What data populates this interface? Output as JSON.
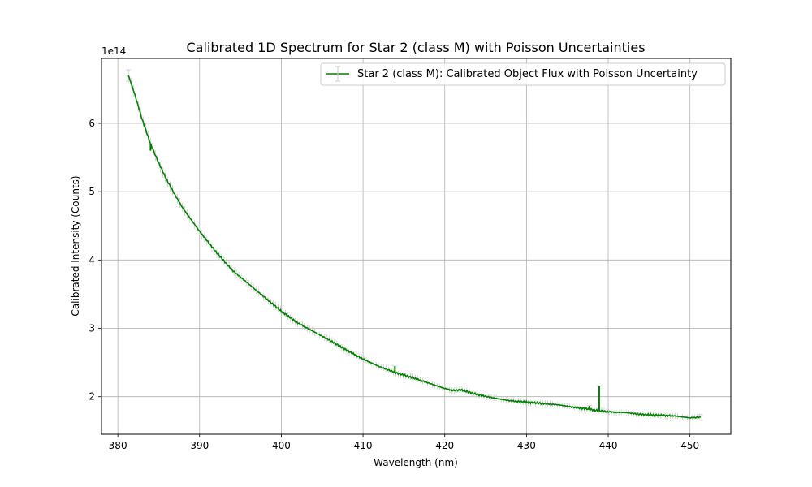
{
  "chart_data": {
    "type": "line",
    "title": "Calibrated 1D Spectrum for Star 2 (class M) with Poisson Uncertainties",
    "xlabel": "Wavelength (nm)",
    "ylabel": "Calibrated Intensity (Counts)",
    "y_offset_label": "1e14",
    "xlim": [
      378,
      455
    ],
    "ylim": [
      1.45,
      6.95
    ],
    "x_ticks": [
      380,
      390,
      400,
      410,
      420,
      430,
      440,
      450
    ],
    "y_ticks": [
      2,
      3,
      4,
      5,
      6
    ],
    "grid": true,
    "legend_position": "top-right",
    "series": [
      {
        "name": "Star 2 (class M): Calibrated Object Flux with Poisson Uncertainty",
        "color": "#008000",
        "errorbar_color": "#c8c8c8",
        "x": [
          381.3,
          382.0,
          383.0,
          384.0,
          385.0,
          386.0,
          387.0,
          388.0,
          390.0,
          392.0,
          394.0,
          396.0,
          398.0,
          400.0,
          402.0,
          404.0,
          406.0,
          408.0,
          410.0,
          412.0,
          414.0,
          416.0,
          418.0,
          420.0,
          421.0,
          422.0,
          424.0,
          426.0,
          428.0,
          430.0,
          432.0,
          434.0,
          436.0,
          437.5,
          438.5,
          440.0,
          441.0,
          442.0,
          444.0,
          446.0,
          448.0,
          450.0,
          451.3
        ],
        "y": [
          6.7,
          6.45,
          6.05,
          5.7,
          5.42,
          5.17,
          4.95,
          4.75,
          4.42,
          4.12,
          3.85,
          3.65,
          3.45,
          3.25,
          3.08,
          2.95,
          2.82,
          2.68,
          2.55,
          2.44,
          2.35,
          2.28,
          2.2,
          2.12,
          2.09,
          2.1,
          2.03,
          1.98,
          1.94,
          1.92,
          1.9,
          1.88,
          1.84,
          1.82,
          1.8,
          1.78,
          1.77,
          1.77,
          1.74,
          1.73,
          1.72,
          1.69,
          1.7
        ]
      }
    ],
    "spikes": [
      {
        "x": 384.0,
        "low": 5.6,
        "high": 5.7
      },
      {
        "x": 413.9,
        "low": 2.36,
        "high": 2.45
      },
      {
        "x": 437.7,
        "low": 1.81,
        "high": 1.87
      },
      {
        "x": 438.9,
        "low": 1.8,
        "high": 2.16
      }
    ]
  }
}
